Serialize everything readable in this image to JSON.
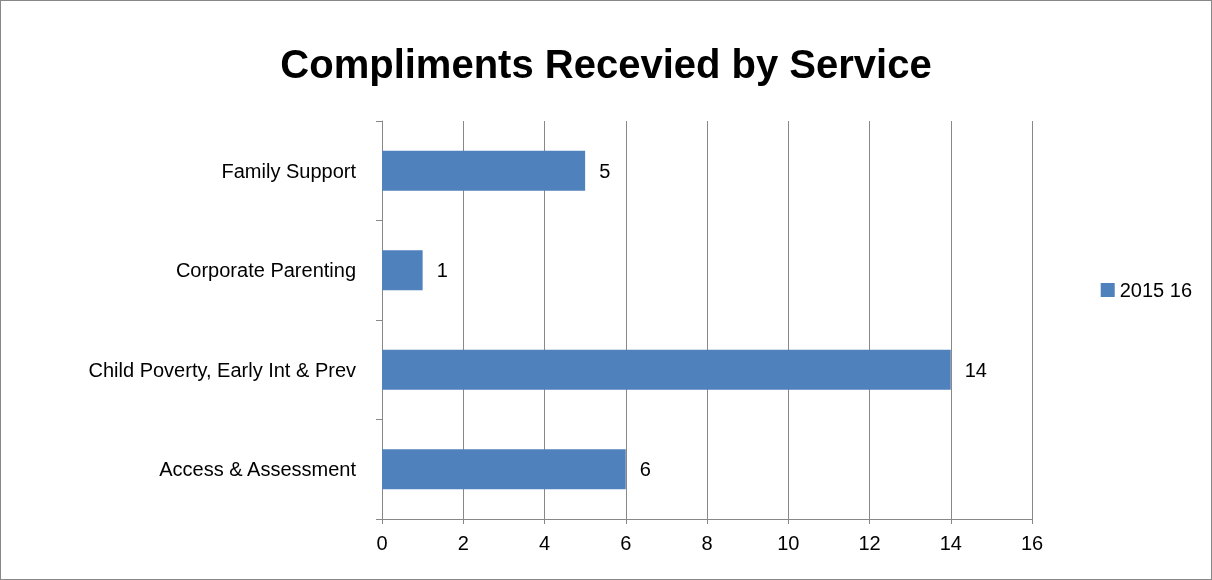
{
  "chart_data": {
    "type": "bar",
    "orientation": "horizontal",
    "title": "Compliments Recevied by Service",
    "categories": [
      "Family Support",
      "Corporate Parenting",
      "Child Poverty, Early Int & Prev",
      "Access & Assessment"
    ],
    "series": [
      {
        "name": "2015 16",
        "color": "#4f81bd",
        "values": [
          5,
          1,
          14,
          6
        ]
      }
    ],
    "xlim": [
      0,
      16
    ],
    "xticks": [
      0,
      2,
      4,
      6,
      8,
      10,
      12,
      14,
      16
    ],
    "grid": "x",
    "legend": "right",
    "data_labels": true
  }
}
